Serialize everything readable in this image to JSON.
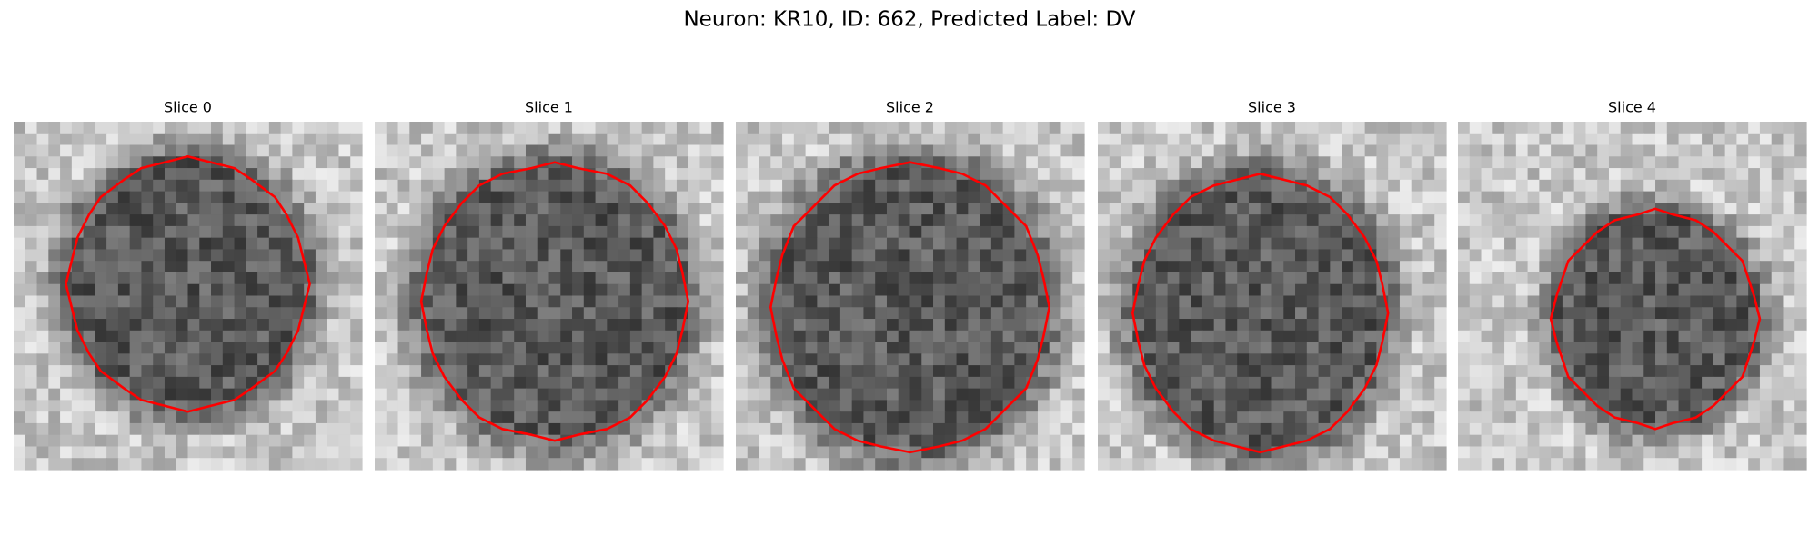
{
  "title": "Neuron: KR10, ID: 662, Predicted Label: DV",
  "panels": [
    {
      "title": "Slice 0"
    },
    {
      "title": "Slice 1"
    },
    {
      "title": "Slice 2"
    },
    {
      "title": "Slice 3"
    },
    {
      "title": "Slice 4"
    }
  ]
}
